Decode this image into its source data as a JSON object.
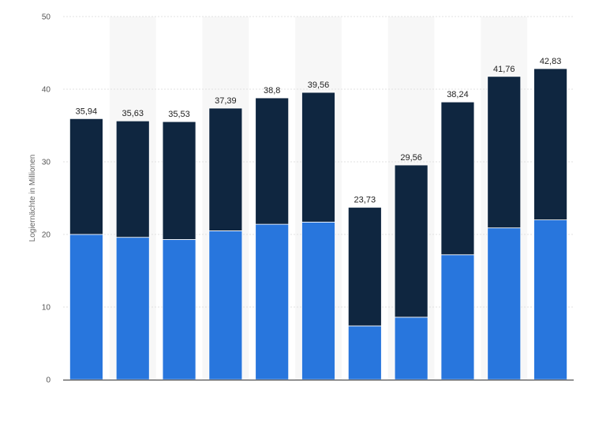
{
  "chart_data": {
    "type": "bar",
    "stacked": true,
    "categories": [
      "",
      "",
      "",
      "",
      "",
      "",
      "",
      "",
      "",
      "",
      ""
    ],
    "series": [
      {
        "values": [
          20.0,
          19.6,
          19.3,
          20.5,
          21.4,
          21.7,
          7.4,
          8.6,
          17.2,
          20.9,
          22.0
        ],
        "color": "#2876dd"
      },
      {
        "values": [
          15.94,
          16.03,
          16.23,
          16.89,
          17.4,
          17.86,
          16.33,
          20.96,
          21.04,
          20.86,
          20.83
        ],
        "color": "#0f2640"
      }
    ],
    "totals": [
      "35,94",
      "35,63",
      "35,53",
      "37,39",
      "38,8",
      "39,56",
      "23,73",
      "29,56",
      "38,24",
      "41,76",
      "42,83"
    ],
    "ylabel": "Logiernächte in Millionen",
    "ylim": [
      0,
      50
    ],
    "yticks": [
      "0",
      "10",
      "20",
      "30",
      "40",
      "50"
    ],
    "grid": true,
    "column_shading": true
  }
}
